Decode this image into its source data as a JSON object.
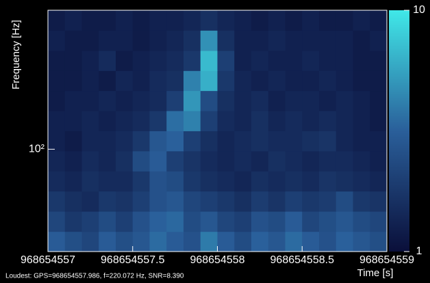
{
  "chart_data": {
    "type": "spectrogram",
    "xlabel": "Time [s]",
    "ylabel": "Frequency [Hz]",
    "footnote": "Loudest: GPS=968654557.986, f=220.072 Hz, SNR=8.390",
    "xlim": [
      968654557,
      968654559
    ],
    "xticks": [
      968654557,
      968654557.5,
      968654558,
      968654558.5,
      968654559
    ],
    "ylim": [
      32,
      470
    ],
    "ylog": true,
    "yticks": [
      {
        "value": 100,
        "label": "10²"
      }
    ],
    "clim": [
      1,
      10
    ],
    "clog": true,
    "cticks": [
      1,
      10
    ],
    "colors": [
      "#0a0f3a",
      "#2a5f9a",
      "#40e8e8"
    ],
    "xbins": [
      968654557,
      968654557.1,
      968654557.2,
      968654557.3,
      968654557.4,
      968654557.5,
      968654557.6,
      968654557.7,
      968654557.8,
      968654557.9,
      968654558,
      968654558.1,
      968654558.2,
      968654558.3,
      968654558.4,
      968654558.5,
      968654558.6,
      968654558.7,
      968654558.8,
      968654558.9,
      968654559
    ],
    "ybins": [
      32,
      40,
      50.1,
      62.7,
      78.4,
      98.1,
      122.7,
      153.5,
      192,
      240,
      300,
      376,
      470
    ],
    "values": [
      [
        3,
        2.5,
        2.2,
        3,
        2.5,
        2.8,
        3.5,
        3,
        2.6,
        4,
        3,
        2.4,
        3.2,
        2.8,
        3.5,
        3,
        2.6,
        3.2,
        2.8,
        2.5
      ],
      [
        2.2,
        1.8,
        2,
        2.4,
        2,
        2.6,
        3.2,
        3.4,
        2.4,
        2.8,
        2.2,
        2,
        2.6,
        2.4,
        3,
        2.2,
        2.5,
        2.8,
        2.4,
        2.2
      ],
      [
        1.8,
        1.6,
        1.5,
        1.8,
        1.7,
        2,
        2.6,
        2.8,
        2.2,
        2,
        1.8,
        1.6,
        1.9,
        1.7,
        2,
        1.8,
        1.9,
        2.4,
        1.8,
        1.7
      ],
      [
        1.5,
        1.4,
        1.6,
        1.5,
        1.5,
        1.8,
        2.6,
        2.4,
        1.8,
        1.6,
        1.5,
        1.4,
        1.6,
        1.5,
        1.6,
        1.5,
        1.7,
        1.6,
        1.5,
        1.4
      ],
      [
        1.4,
        1.3,
        1.5,
        1.4,
        1.6,
        2.4,
        3,
        2,
        1.7,
        1.5,
        1.4,
        1.5,
        1.4,
        1.6,
        1.5,
        1.4,
        1.5,
        1.5,
        1.4,
        1.3
      ],
      [
        1.3,
        1.2,
        1.4,
        1.4,
        1.5,
        1.8,
        2.8,
        3.2,
        2,
        1.6,
        1.4,
        1.5,
        1.6,
        1.5,
        1.5,
        1.6,
        1.7,
        1.4,
        1.3,
        1.3
      ],
      [
        1.3,
        1.3,
        1.4,
        1.3,
        1.4,
        1.5,
        1.8,
        3.6,
        4.2,
        2,
        1.5,
        1.4,
        1.6,
        1.4,
        1.5,
        1.4,
        1.5,
        1.4,
        1.3,
        1.2
      ],
      [
        1.2,
        1.3,
        1.3,
        1.4,
        1.3,
        1.4,
        1.5,
        2,
        5,
        2.4,
        1.6,
        1.4,
        1.5,
        1.3,
        1.4,
        1.4,
        1.3,
        1.4,
        1.3,
        1.2
      ],
      [
        1.2,
        1.2,
        1.3,
        1.2,
        1.4,
        1.3,
        1.5,
        1.6,
        4.2,
        6.2,
        1.8,
        1.4,
        1.3,
        1.4,
        1.3,
        1.3,
        1.4,
        1.3,
        1.2,
        1.2
      ],
      [
        1.2,
        1.2,
        1.3,
        1.5,
        1.2,
        1.3,
        1.4,
        1.5,
        1.8,
        6.8,
        2,
        1.3,
        1.4,
        1.3,
        1.3,
        1.4,
        1.3,
        1.3,
        1.2,
        1.2
      ],
      [
        1.3,
        1.2,
        1.2,
        1.3,
        1.3,
        1.2,
        1.3,
        1.4,
        1.6,
        4.8,
        1.6,
        1.3,
        1.3,
        1.4,
        1.3,
        1.3,
        1.3,
        1.3,
        1.2,
        1.3
      ],
      [
        1.2,
        1.3,
        1.2,
        1.2,
        1.3,
        1.2,
        1.3,
        1.3,
        1.4,
        1.6,
        1.4,
        1.3,
        1.2,
        1.3,
        1.2,
        1.3,
        1.2,
        1.2,
        1.3,
        1.2
      ]
    ]
  }
}
